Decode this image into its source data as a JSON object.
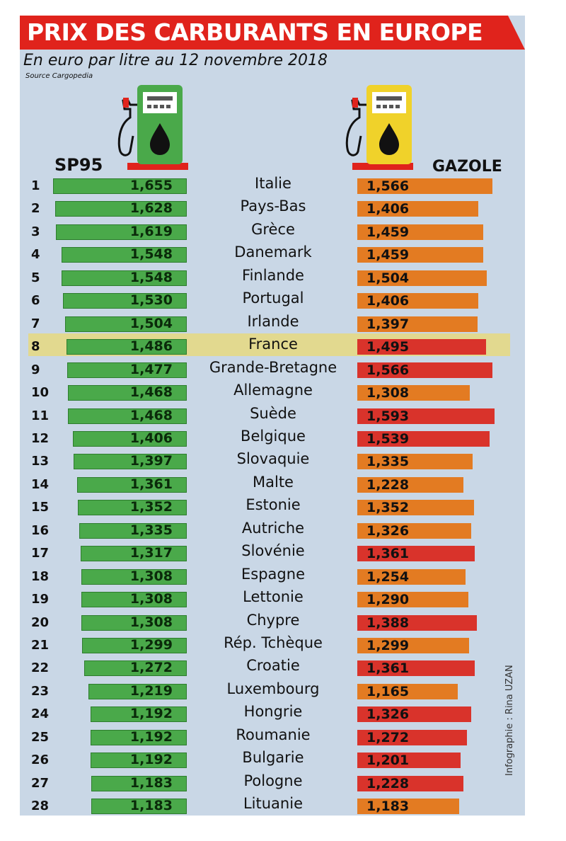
{
  "title": "PRIX DES CARBURANTS EN EUROPE",
  "subtitle": "En euro par litre au 12 novembre 2018",
  "source": "Source Cargopedia",
  "credit": "Infographie : Rina UZAN",
  "colors": {
    "title_bg": "#e0231c",
    "panel": "#c9d7e6",
    "sp95": "#4aa94a",
    "gazole_orange": "#e37b22",
    "gazole_red": "#d9332b",
    "highlight": "#e2d98f"
  },
  "icons": {
    "left_pump": "fuel-pump-green-icon",
    "right_pump": "fuel-pump-yellow-icon"
  },
  "chart_data": {
    "type": "bar",
    "title": "PRIX DES CARBURANTS EN EUROPE",
    "subtitle": "En euro par litre au 12 novembre 2018",
    "highlighted_category": "France",
    "categories": [
      "Italie",
      "Pays-Bas",
      "Grèce",
      "Danemark",
      "Finlande",
      "Portugal",
      "Irlande",
      "France",
      "Grande-Bretagne",
      "Allemagne",
      "Suède",
      "Belgique",
      "Slovaquie",
      "Malte",
      "Estonie",
      "Autriche",
      "Slovénie",
      "Espagne",
      "Lettonie",
      "Chypre",
      "Rép. Tchèque",
      "Croatie",
      "Luxembourg",
      "Hongrie",
      "Roumanie",
      "Bulgarie",
      "Pologne",
      "Lituanie"
    ],
    "ranks": [
      "1",
      "2",
      "3",
      "4",
      "5",
      "6",
      "7",
      "8",
      "9",
      "10",
      "11",
      "12",
      "13",
      "14",
      "15",
      "16",
      "17",
      "18",
      "19",
      "20",
      "21",
      "22",
      "23",
      "24",
      "25",
      "26",
      "27",
      "28"
    ],
    "series": [
      {
        "name": "SP95",
        "values": [
          1.655,
          1.628,
          1.619,
          1.548,
          1.548,
          1.53,
          1.504,
          1.486,
          1.477,
          1.468,
          1.468,
          1.406,
          1.397,
          1.361,
          1.352,
          1.335,
          1.317,
          1.308,
          1.308,
          1.308,
          1.299,
          1.272,
          1.219,
          1.192,
          1.192,
          1.192,
          1.183,
          1.183
        ],
        "labels": [
          "1,655",
          "1,628",
          "1,619",
          "1,548",
          "1,548",
          "1,530",
          "1,504",
          "1,486",
          "1,477",
          "1,468",
          "1,468",
          "1,406",
          "1,397",
          "1,361",
          "1,352",
          "1,335",
          "1,317",
          "1,308",
          "1,308",
          "1,308",
          "1,299",
          "1,272",
          "1,219",
          "1,192",
          "1,192",
          "1,192",
          "1,183",
          "1,183"
        ]
      },
      {
        "name": "GAZOLE",
        "values": [
          1.566,
          1.406,
          1.459,
          1.459,
          1.504,
          1.406,
          1.397,
          1.495,
          1.566,
          1.308,
          1.593,
          1.539,
          1.335,
          1.228,
          1.352,
          1.326,
          1.361,
          1.254,
          1.29,
          1.388,
          1.299,
          1.361,
          1.165,
          1.326,
          1.272,
          1.201,
          1.228,
          1.183
        ],
        "labels": [
          "1,566",
          "1,406",
          "1,459",
          "1,459",
          "1,504",
          "1,406",
          "1,397",
          "1,495",
          "1,566",
          "1,308",
          "1,593",
          "1,539",
          "1,335",
          "1,228",
          "1,352",
          "1,326",
          "1,361",
          "1,254",
          "1,290",
          "1,388",
          "1,299",
          "1,361",
          "1,165",
          "1,326",
          "1,272",
          "1,201",
          "1,228",
          "1,183"
        ],
        "bar_colors": [
          "orange",
          "orange",
          "orange",
          "orange",
          "orange",
          "orange",
          "orange",
          "red",
          "red",
          "orange",
          "red",
          "red",
          "orange",
          "orange",
          "orange",
          "orange",
          "red",
          "orange",
          "orange",
          "red",
          "orange",
          "red",
          "orange",
          "red",
          "red",
          "red",
          "red",
          "orange"
        ]
      }
    ]
  }
}
